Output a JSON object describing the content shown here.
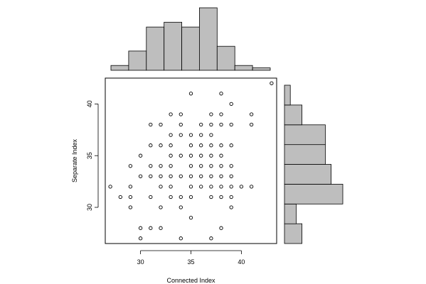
{
  "chart_data": [
    {
      "type": "scatter",
      "xlabel": "Connected Index",
      "ylabel": "Separate Index",
      "xlim": [
        26.5,
        43.5
      ],
      "ylim": [
        26.5,
        42.5
      ],
      "x_ticks": [
        30,
        35,
        40
      ],
      "y_ticks": [
        30,
        35,
        40
      ],
      "grid": false,
      "marker": "open-circle",
      "points": [
        [
          27,
          32
        ],
        [
          28,
          31
        ],
        [
          29,
          31
        ],
        [
          29,
          32
        ],
        [
          29,
          30
        ],
        [
          29,
          34
        ],
        [
          30,
          27
        ],
        [
          30,
          28
        ],
        [
          30,
          33
        ],
        [
          30,
          35
        ],
        [
          31,
          28
        ],
        [
          31,
          31
        ],
        [
          31,
          33
        ],
        [
          31,
          34
        ],
        [
          31,
          36
        ],
        [
          31,
          38
        ],
        [
          32,
          28
        ],
        [
          32,
          30
        ],
        [
          32,
          32
        ],
        [
          32,
          33
        ],
        [
          32,
          34
        ],
        [
          32,
          36
        ],
        [
          32,
          38
        ],
        [
          33,
          31
        ],
        [
          33,
          32
        ],
        [
          33,
          33
        ],
        [
          33,
          34
        ],
        [
          33,
          35
        ],
        [
          33,
          36
        ],
        [
          33,
          37
        ],
        [
          33,
          39
        ],
        [
          34,
          27
        ],
        [
          34,
          30
        ],
        [
          34,
          31
        ],
        [
          34,
          33
        ],
        [
          34,
          35
        ],
        [
          34,
          37
        ],
        [
          34,
          38
        ],
        [
          34,
          39
        ],
        [
          35,
          29
        ],
        [
          35,
          31
        ],
        [
          35,
          32
        ],
        [
          35,
          33
        ],
        [
          35,
          34
        ],
        [
          35,
          35
        ],
        [
          35,
          36
        ],
        [
          35,
          37
        ],
        [
          35,
          41
        ],
        [
          36,
          32
        ],
        [
          36,
          33
        ],
        [
          36,
          34
        ],
        [
          36,
          35
        ],
        [
          36,
          36
        ],
        [
          36,
          37
        ],
        [
          36,
          38
        ],
        [
          37,
          27
        ],
        [
          37,
          31
        ],
        [
          37,
          32
        ],
        [
          37,
          33
        ],
        [
          37,
          34
        ],
        [
          37,
          35
        ],
        [
          37,
          36
        ],
        [
          37,
          37
        ],
        [
          37,
          38
        ],
        [
          37,
          39
        ],
        [
          38,
          28
        ],
        [
          38,
          31
        ],
        [
          38,
          32
        ],
        [
          38,
          33
        ],
        [
          38,
          34
        ],
        [
          38,
          35
        ],
        [
          38,
          36
        ],
        [
          38,
          38
        ],
        [
          38,
          39
        ],
        [
          38,
          41
        ],
        [
          39,
          30
        ],
        [
          39,
          31
        ],
        [
          39,
          32
        ],
        [
          39,
          33
        ],
        [
          39,
          34
        ],
        [
          39,
          36
        ],
        [
          39,
          38
        ],
        [
          39,
          40
        ],
        [
          40,
          32
        ],
        [
          41,
          32
        ],
        [
          41,
          38
        ],
        [
          41,
          39
        ],
        [
          43,
          42
        ]
      ]
    },
    {
      "type": "bar",
      "variable": "Connected Index",
      "orientation": "vertical",
      "bin_edges": [
        26,
        28,
        30,
        32,
        34,
        36,
        38,
        40,
        42,
        44
      ],
      "values": [
        1,
        4,
        9,
        10,
        9,
        13,
        5,
        1,
        0.5
      ]
    },
    {
      "type": "bar",
      "variable": "Separate Index",
      "orientation": "horizontal",
      "bin_edges": [
        27,
        29,
        31,
        33,
        35,
        37,
        39,
        41,
        43
      ],
      "values": [
        3,
        2,
        10,
        8,
        7,
        7,
        3,
        1
      ]
    }
  ]
}
